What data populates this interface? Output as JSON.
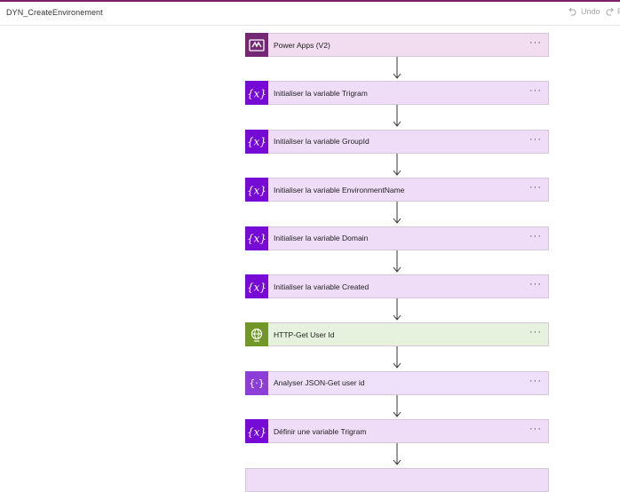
{
  "header": {
    "flow_name": "DYN_CreateEnvironement",
    "undo_label": "Undo",
    "redo_label": "F"
  },
  "steps": [
    {
      "label": "Power Apps (V2)",
      "icon": "power-apps-icon",
      "color": "#742774",
      "bg": "#f2dcef"
    },
    {
      "label": "Initialiser la variable Trigram",
      "icon": "variable-icon",
      "color": "#770bd6",
      "bg": "#efddf8"
    },
    {
      "label": "Initialiser la variable GroupId",
      "icon": "variable-icon",
      "color": "#770bd6",
      "bg": "#efddf8"
    },
    {
      "label": "Initialiser la variable EnvironmentName",
      "icon": "variable-icon",
      "color": "#770bd6",
      "bg": "#efddf8"
    },
    {
      "label": "Initialiser la variable Domain",
      "icon": "variable-icon",
      "color": "#770bd6",
      "bg": "#efddf8"
    },
    {
      "label": "Initialiser la variable Created",
      "icon": "variable-icon",
      "color": "#770bd6",
      "bg": "#efddf8"
    },
    {
      "label": "HTTP-Get User Id",
      "icon": "globe-icon",
      "color": "#709727",
      "bg": "#e7f2de"
    },
    {
      "label": "Analyser JSON-Get user id",
      "icon": "json-icon",
      "color": "#8c3ed6",
      "bg": "#efe0fa"
    },
    {
      "label": "Définir une variable Trigram",
      "icon": "variable-icon",
      "color": "#770bd6",
      "bg": "#efddf8"
    }
  ],
  "more_label": "···"
}
